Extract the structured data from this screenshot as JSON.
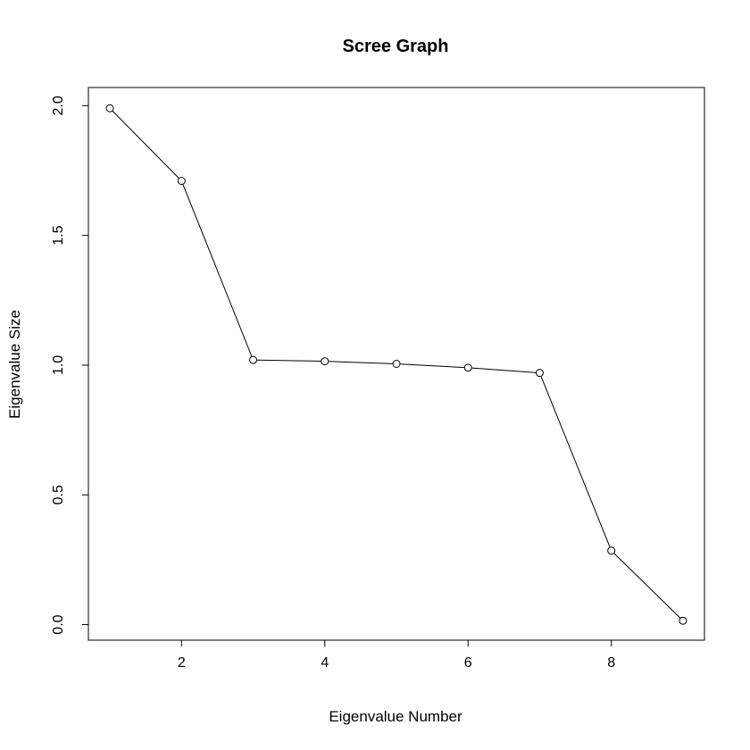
{
  "chart_data": {
    "type": "line",
    "title": "Scree Graph",
    "xlabel": "Eigenvalue Number",
    "ylabel": "Eigenvalue Size",
    "x": [
      1,
      2,
      3,
      4,
      5,
      6,
      7,
      8,
      9
    ],
    "series": [
      {
        "values": [
          1.99,
          1.71,
          1.02,
          1.015,
          1.005,
          0.99,
          0.97,
          0.285,
          0.015
        ]
      }
    ],
    "xlim": [
      0.7,
      9.3
    ],
    "ylim": [
      -0.06,
      2.07
    ],
    "xticks": [
      2,
      4,
      6,
      8
    ],
    "xtick_labels": [
      "2",
      "4",
      "6",
      "8"
    ],
    "yticks": [
      0,
      0.5,
      1,
      1.5,
      2
    ],
    "ytick_labels": [
      "0.0",
      "0.5",
      "1.0",
      "1.5",
      "2.0"
    ],
    "marker": "open-circle",
    "grid": false,
    "colors": {
      "line": "#000000",
      "marker": "#000000",
      "frame": "#000000"
    }
  }
}
